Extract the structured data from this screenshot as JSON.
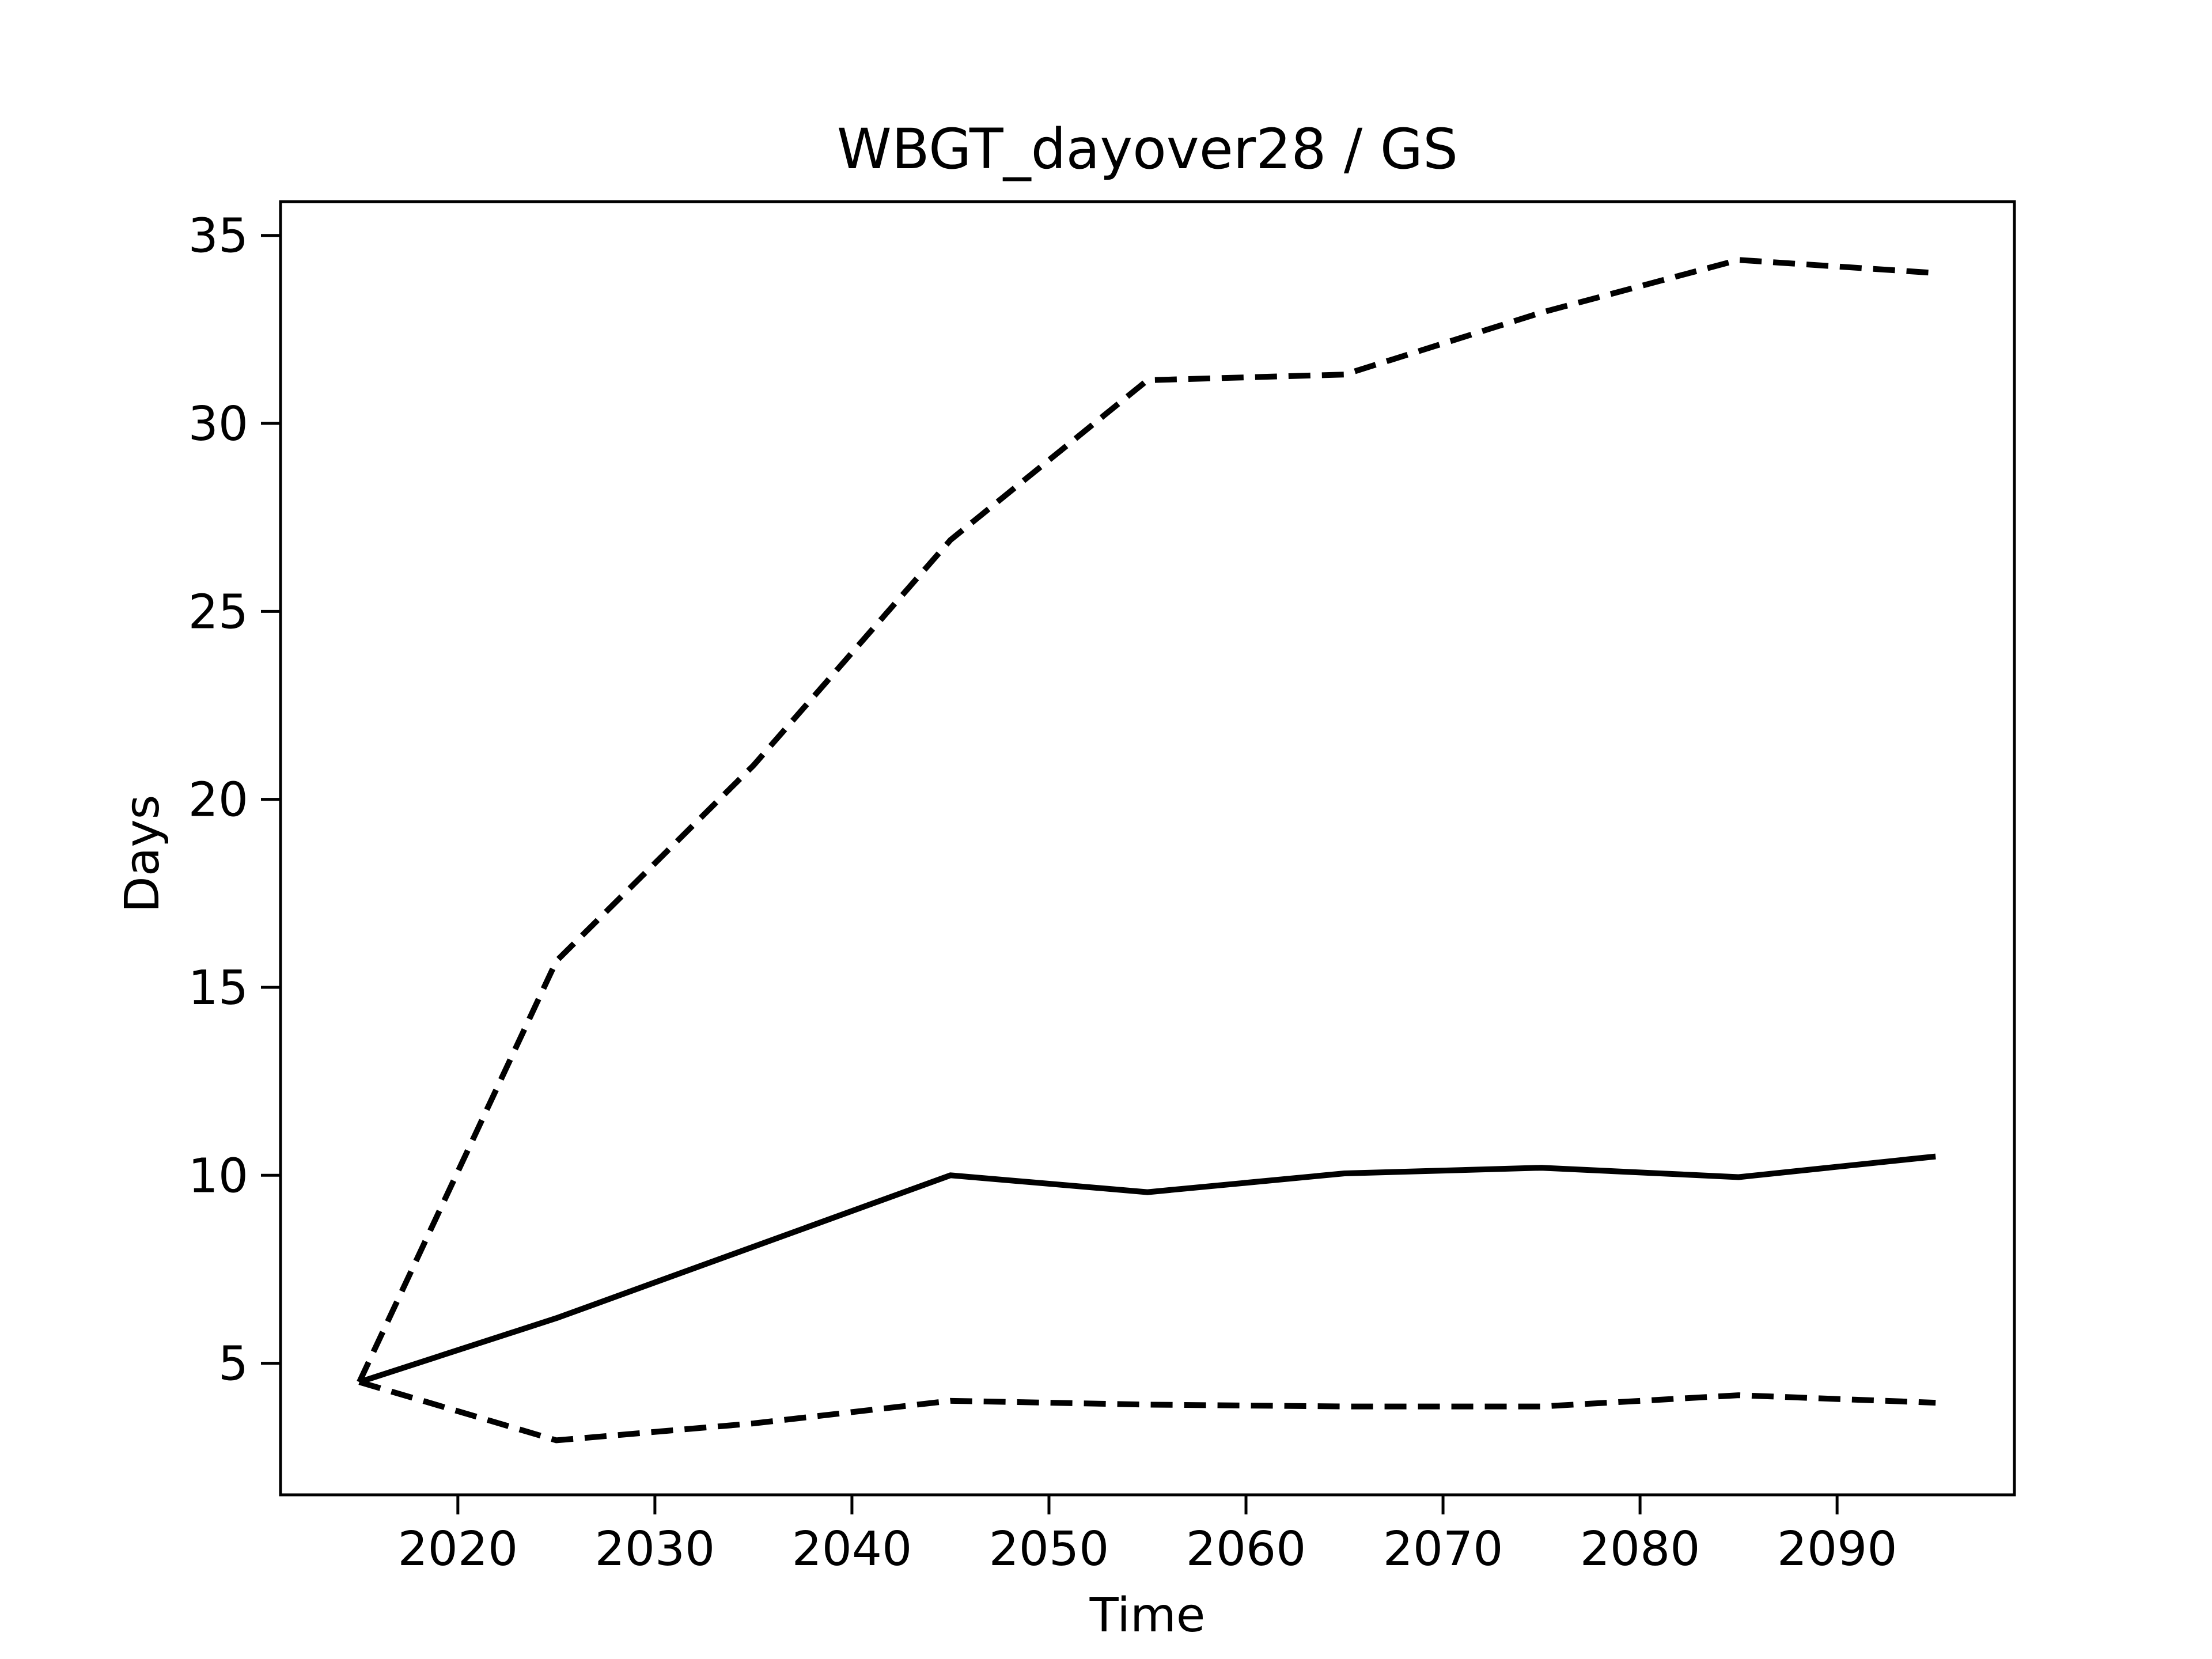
{
  "chart_data": {
    "type": "line",
    "title": "WBGT_dayover28 / GS",
    "xlabel": "Time",
    "ylabel": "Days",
    "xlim": [
      2011,
      2099
    ],
    "ylim": [
      1.5,
      35.9
    ],
    "x_ticks": [
      2020,
      2030,
      2040,
      2050,
      2060,
      2070,
      2080,
      2090
    ],
    "y_ticks": [
      5,
      10,
      15,
      20,
      25,
      30,
      35
    ],
    "grid": false,
    "legend": "none",
    "colors": {
      "line": "#000000",
      "background": "#ffffff"
    },
    "x": [
      2015,
      2025,
      2035,
      2045,
      2055,
      2065,
      2075,
      2085,
      2095
    ],
    "series": [
      {
        "style": "solid",
        "values": [
          4.5,
          6.2,
          8.1,
          10.0,
          9.55,
          10.05,
          10.2,
          9.95,
          10.5
        ]
      },
      {
        "style": "dashed",
        "values": [
          4.5,
          15.7,
          20.9,
          26.9,
          31.15,
          31.3,
          32.95,
          34.35,
          34.0
        ]
      },
      {
        "style": "dashed",
        "values": [
          4.5,
          2.95,
          3.4,
          4.0,
          3.9,
          3.85,
          3.85,
          4.15,
          3.95
        ]
      }
    ]
  }
}
